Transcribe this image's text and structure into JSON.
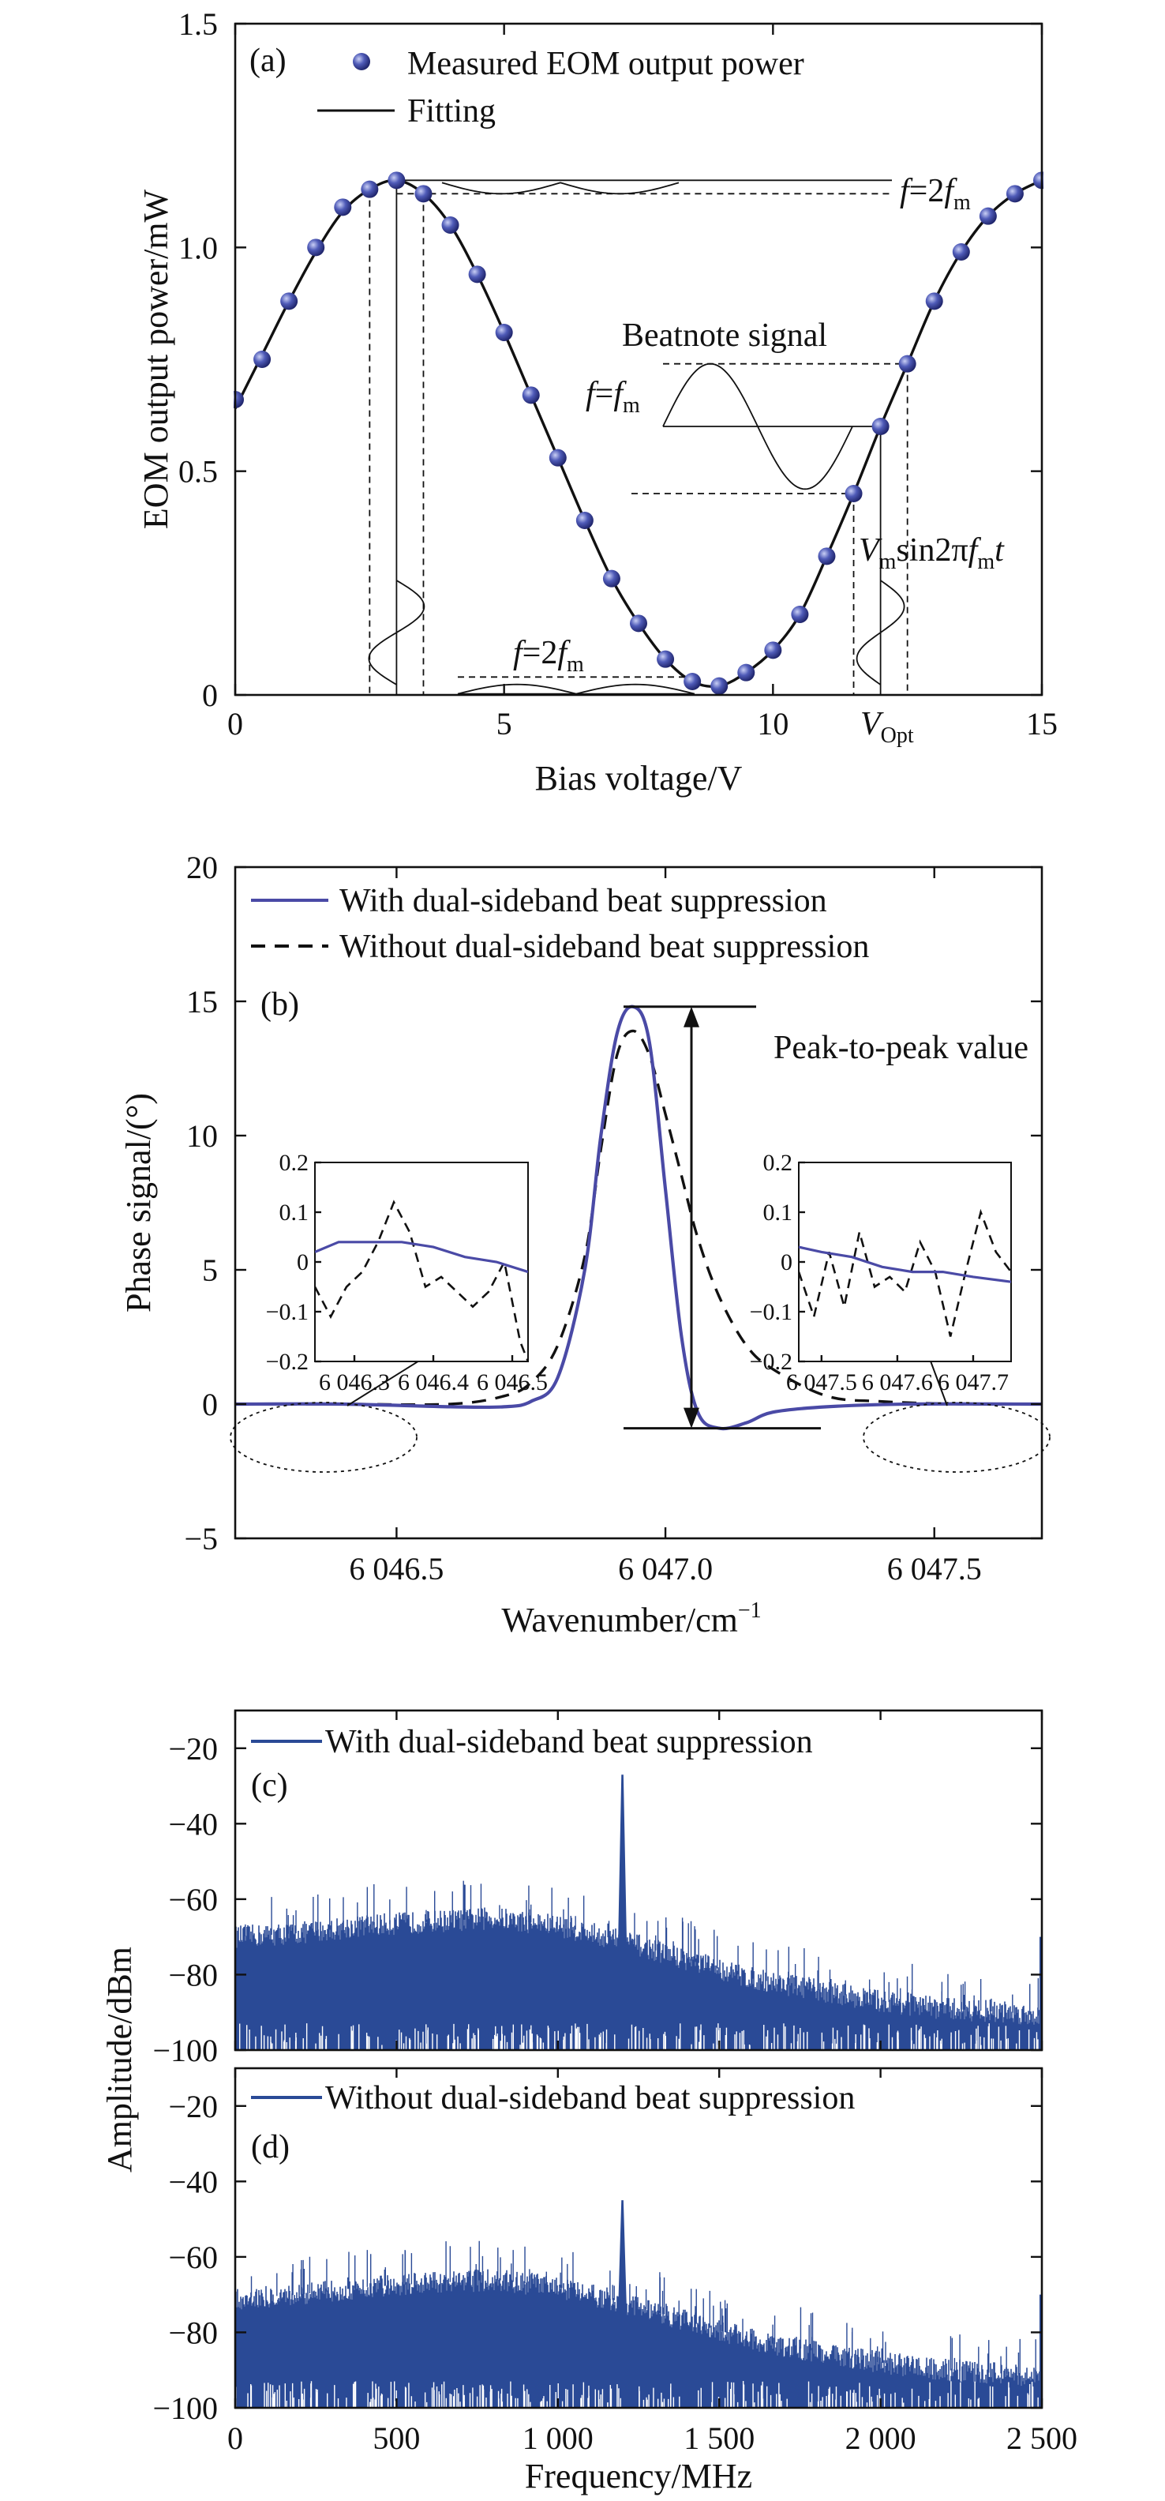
{
  "chart_data": [
    {
      "id": "a",
      "type": "scatter",
      "panel_label": "(a)",
      "xlabel": "Bias voltage/V",
      "ylabel": "EOM output power/mW",
      "xlim": [
        0,
        15
      ],
      "ylim": [
        0,
        1.5
      ],
      "x_ticks": [
        "0",
        "5",
        "10",
        "15"
      ],
      "y_ticks": [
        "0",
        "0.5",
        "1.0",
        "1.5"
      ],
      "series": [
        {
          "name": "Measured EOM output power",
          "kind": "points",
          "x": [
            0,
            0.5,
            1.0,
            1.5,
            2.0,
            2.5,
            3.0,
            3.5,
            4.0,
            4.5,
            5.0,
            5.5,
            6.0,
            6.5,
            7.0,
            7.5,
            8.0,
            8.5,
            9.0,
            9.5,
            10.0,
            10.5,
            11.0,
            11.5,
            12.0,
            12.5,
            13.0,
            13.5,
            14.0,
            14.5,
            15.0
          ],
          "y": [
            0.66,
            0.75,
            0.88,
            1.0,
            1.09,
            1.13,
            1.15,
            1.12,
            1.05,
            0.94,
            0.81,
            0.67,
            0.53,
            0.39,
            0.26,
            0.16,
            0.08,
            0.03,
            0.02,
            0.05,
            0.1,
            0.18,
            0.31,
            0.45,
            0.6,
            0.74,
            0.88,
            0.99,
            1.07,
            1.12,
            1.15
          ]
        },
        {
          "name": "Fitting",
          "kind": "line",
          "x": [
            0,
            0.5,
            1.0,
            1.5,
            2.0,
            2.5,
            3.0,
            3.5,
            4.0,
            4.5,
            5.0,
            5.5,
            6.0,
            6.5,
            7.0,
            7.5,
            8.0,
            8.5,
            9.0,
            9.5,
            10.0,
            10.5,
            11.0,
            11.5,
            12.0,
            12.5,
            13.0,
            13.5,
            14.0,
            14.5,
            15.0
          ],
          "y": [
            0.64,
            0.76,
            0.88,
            0.99,
            1.08,
            1.13,
            1.15,
            1.12,
            1.05,
            0.94,
            0.81,
            0.67,
            0.53,
            0.39,
            0.26,
            0.16,
            0.08,
            0.03,
            0.02,
            0.05,
            0.1,
            0.18,
            0.31,
            0.45,
            0.6,
            0.74,
            0.88,
            0.99,
            1.07,
            1.12,
            1.15
          ]
        }
      ],
      "annotations": {
        "f2_top": {
          "pre": "f",
          "mid": "=2",
          "var": "f",
          "sub": "m"
        },
        "f2_bottom": {
          "pre": "f",
          "mid": "=2",
          "var": "f",
          "sub": "m"
        },
        "beatnote": "Beatnote signal",
        "f1": {
          "pre": "f",
          "mid": "=",
          "var": "f",
          "sub": "m"
        },
        "vm_sin": {
          "v": "V",
          "vsub": "m",
          "sin": "sin2π",
          "f": "f",
          "fsub": "m",
          "t": "t"
        },
        "vopt": {
          "v": "V",
          "sub": "Opt"
        }
      },
      "bias_points": {
        "peak_v": 3.0,
        "vopt_v": 12.0
      }
    },
    {
      "id": "b",
      "type": "line",
      "panel_label": "(b)",
      "xlabel": "Wavenumber/cm",
      "xlabel_sup": "−1",
      "ylabel": "Phase signal/(°)",
      "xlim": [
        6046.2,
        6047.7
      ],
      "ylim": [
        -5,
        20
      ],
      "x_ticks": [
        {
          "v": 6046.5,
          "label": "6 046.5"
        },
        {
          "v": 6047.0,
          "label": "6 047.0"
        },
        {
          "v": 6047.5,
          "label": "6 047.5"
        }
      ],
      "y_ticks": [
        {
          "v": -5,
          "label": "−5"
        },
        {
          "v": 0,
          "label": "0"
        },
        {
          "v": 5,
          "label": "5"
        },
        {
          "v": 10,
          "label": "10"
        },
        {
          "v": 15,
          "label": "15"
        },
        {
          "v": 20,
          "label": "20"
        }
      ],
      "series": [
        {
          "name": "With dual-sideband beat suppression",
          "color": "#4a4aa6",
          "x": [
            6046.2,
            6046.4,
            6046.6,
            6046.7,
            6046.75,
            6046.8,
            6046.85,
            6046.88,
            6046.91,
            6046.94,
            6046.97,
            6047.0,
            6047.03,
            6047.06,
            6047.1,
            6047.15,
            6047.2,
            6047.3,
            6047.45,
            6047.7
          ],
          "y": [
            0,
            0,
            -0.1,
            -0.1,
            0.1,
            1.0,
            5.0,
            10.0,
            13.8,
            14.8,
            13.5,
            8.0,
            2.5,
            -0.3,
            -0.9,
            -0.7,
            -0.3,
            -0.1,
            0,
            0
          ]
        },
        {
          "name": "Without dual-sideband beat suppression",
          "color": "#111111",
          "dashed": true,
          "x": [
            6046.2,
            6046.4,
            6046.6,
            6046.7,
            6046.75,
            6046.8,
            6046.85,
            6046.88,
            6046.91,
            6046.94,
            6046.97,
            6047.0,
            6047.03,
            6047.06,
            6047.1,
            6047.15,
            6047.2,
            6047.3,
            6047.4,
            6047.55,
            6047.7
          ],
          "y": [
            0,
            0,
            0,
            0.3,
            0.8,
            2.2,
            5.5,
            9.5,
            13.0,
            13.9,
            13.0,
            10.8,
            8.5,
            6.2,
            4.0,
            2.2,
            1.3,
            0.3,
            0.1,
            0,
            0
          ]
        }
      ],
      "annotations": {
        "peak_to_peak": "Peak-to-peak value"
      },
      "peak_to_peak_range": [
        -0.9,
        14.8
      ],
      "insets": [
        {
          "name": "left-inset",
          "xlim": [
            6046.25,
            6046.52
          ],
          "ylim": [
            -0.2,
            0.2
          ],
          "x_ticks": [
            {
              "v": 6046.3,
              "label": "6 046.3"
            },
            {
              "v": 6046.4,
              "label": "6 046.4"
            },
            {
              "v": 6046.5,
              "label": "6 046.5"
            }
          ],
          "y_ticks": [
            {
              "v": 0.2,
              "label": "0.2"
            },
            {
              "v": 0.1,
              "label": "0.1"
            },
            {
              "v": 0,
              "label": "0"
            },
            {
              "v": -0.1,
              "label": "−0.1"
            },
            {
              "v": -0.2,
              "label": "−0.2"
            }
          ],
          "with": {
            "x": [
              6046.25,
              6046.28,
              6046.32,
              6046.36,
              6046.4,
              6046.44,
              6046.48,
              6046.52
            ],
            "y": [
              0.02,
              0.04,
              0.04,
              0.04,
              0.03,
              0.01,
              0.0,
              -0.02
            ]
          },
          "without": {
            "x": [
              6046.25,
              6046.27,
              6046.29,
              6046.31,
              6046.33,
              6046.35,
              6046.37,
              6046.39,
              6046.41,
              6046.43,
              6046.45,
              6046.47,
              6046.49,
              6046.51,
              6046.52
            ],
            "y": [
              -0.05,
              -0.11,
              -0.05,
              -0.02,
              0.04,
              0.12,
              0.06,
              -0.05,
              -0.03,
              -0.06,
              -0.09,
              -0.06,
              0.0,
              -0.16,
              -0.2
            ]
          }
        },
        {
          "name": "right-inset",
          "xlim": [
            6047.47,
            6047.75
          ],
          "ylim": [
            -0.2,
            0.2
          ],
          "x_ticks": [
            {
              "v": 6047.5,
              "label": "6 047.5"
            },
            {
              "v": 6047.6,
              "label": "6 047.6"
            },
            {
              "v": 6047.7,
              "label": "6 047.7"
            }
          ],
          "y_ticks": [
            {
              "v": 0.2,
              "label": "0.2"
            },
            {
              "v": 0.1,
              "label": "0.1"
            },
            {
              "v": 0,
              "label": "0"
            },
            {
              "v": -0.1,
              "label": "−0.1"
            },
            {
              "v": -0.2,
              "label": "−0.2"
            }
          ],
          "with": {
            "x": [
              6047.47,
              6047.5,
              6047.54,
              6047.58,
              6047.62,
              6047.66,
              6047.7,
              6047.75
            ],
            "y": [
              0.03,
              0.02,
              0.01,
              -0.01,
              -0.02,
              -0.02,
              -0.03,
              -0.04
            ]
          },
          "without": {
            "x": [
              6047.47,
              6047.49,
              6047.51,
              6047.53,
              6047.55,
              6047.57,
              6047.59,
              6047.61,
              6047.63,
              6047.65,
              6047.67,
              6047.69,
              6047.71,
              6047.73,
              6047.75
            ],
            "y": [
              -0.02,
              -0.11,
              0.02,
              -0.09,
              0.06,
              -0.05,
              -0.03,
              -0.06,
              0.04,
              -0.02,
              -0.15,
              -0.02,
              0.1,
              0.02,
              -0.02
            ]
          }
        }
      ]
    },
    {
      "id": "c",
      "type": "line",
      "panel_label": "(c)",
      "legend": "With dual-sideband beat suppression",
      "color": "#2a4a96",
      "xlim": [
        0,
        2500
      ],
      "ylim": [
        -100,
        -10
      ],
      "y_ticks": [
        {
          "v": -20,
          "label": "−20"
        },
        {
          "v": -40,
          "label": "−40"
        },
        {
          "v": -60,
          "label": "−60"
        },
        {
          "v": -80,
          "label": "−80"
        },
        {
          "v": -100,
          "label": "−100"
        }
      ],
      "noise_floor_top": {
        "x": [
          0,
          200,
          400,
          600,
          800,
          1000,
          1200,
          1400,
          1600,
          1800,
          2000,
          2200,
          2400,
          2500
        ],
        "y": [
          -70,
          -69,
          -67,
          -66,
          -65,
          -67,
          -71,
          -76,
          -81,
          -84,
          -87,
          -89,
          -90,
          -91
        ]
      },
      "peak": {
        "x": 1200,
        "y": -27
      }
    },
    {
      "id": "d",
      "type": "line",
      "panel_label": "(d)",
      "legend": "Without dual-sideband beat suppression",
      "color": "#2a4a96",
      "xlim": [
        0,
        2500
      ],
      "ylim": [
        -100,
        -10
      ],
      "xlabel": "Frequency/MHz",
      "x_ticks": [
        {
          "v": 0,
          "label": "0"
        },
        {
          "v": 500,
          "label": "500"
        },
        {
          "v": 1000,
          "label": "1 000"
        },
        {
          "v": 1500,
          "label": "1 500"
        },
        {
          "v": 2000,
          "label": "2 000"
        },
        {
          "v": 2500,
          "label": "2 500"
        }
      ],
      "y_ticks": [
        {
          "v": -20,
          "label": "−20"
        },
        {
          "v": -40,
          "label": "−40"
        },
        {
          "v": -60,
          "label": "−60"
        },
        {
          "v": -80,
          "label": "−80"
        },
        {
          "v": -100,
          "label": "−100"
        }
      ],
      "noise_floor_top": {
        "x": [
          0,
          200,
          400,
          600,
          800,
          1000,
          1200,
          1400,
          1600,
          1800,
          2000,
          2200,
          2400,
          2500
        ],
        "y": [
          -71,
          -70,
          -68,
          -67,
          -66,
          -68,
          -72,
          -77,
          -82,
          -85,
          -88,
          -90,
          -91,
          -92
        ]
      },
      "peak": {
        "x": 1200,
        "y": -45
      }
    }
  ],
  "shared": {
    "ylabel_cd": "Amplitude/dBm"
  }
}
